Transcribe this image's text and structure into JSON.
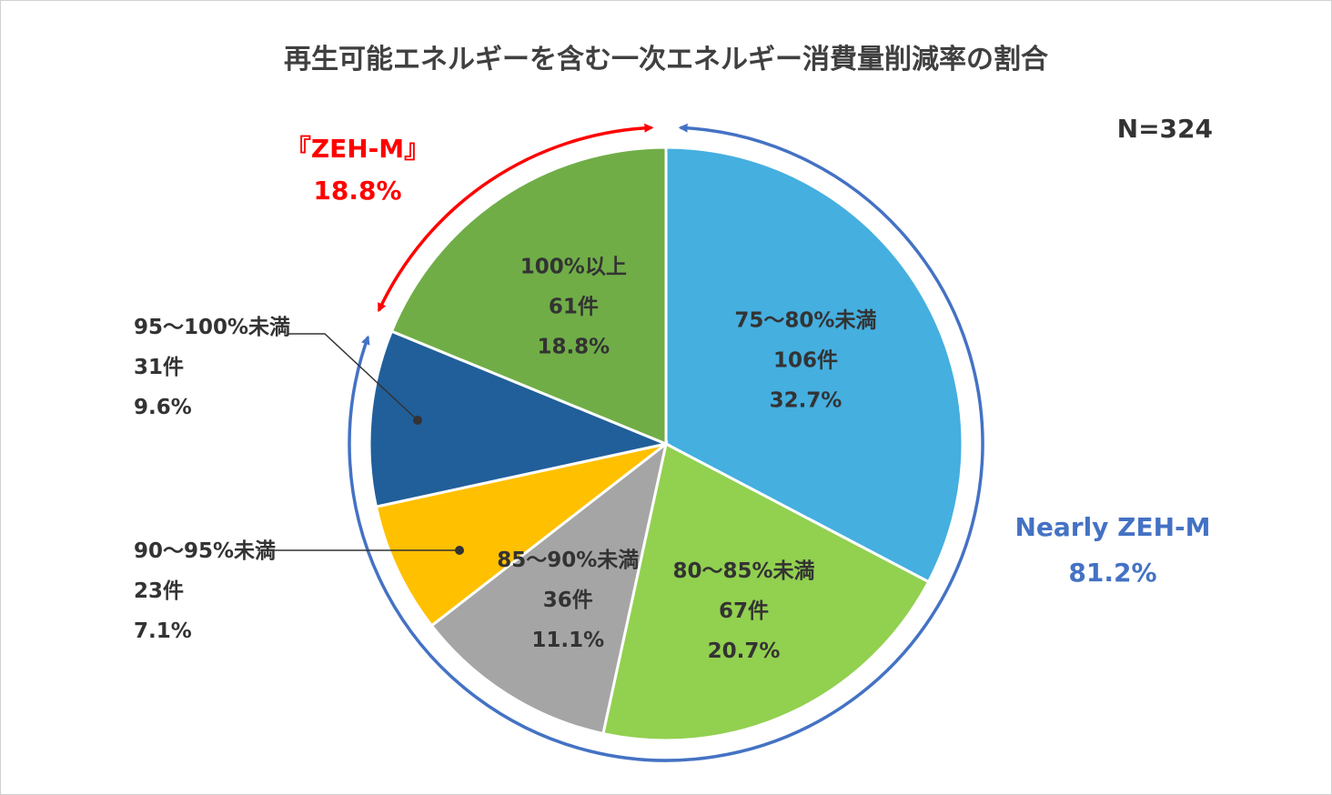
{
  "chart_data": {
    "type": "pie",
    "title": "再生可能エネルギーを含む一次エネルギー消費量削減率の割合",
    "sample_size": "N=324",
    "slices": [
      {
        "category": "75～80%未満",
        "count": "106件",
        "percent": "32.7%",
        "value": 32.7,
        "color": "#45AFE0"
      },
      {
        "category": "80～85%未満",
        "count": "67件",
        "percent": "20.7%",
        "value": 20.7,
        "color": "#92D050"
      },
      {
        "category": "85～90%未満",
        "count": "36件",
        "percent": "11.1%",
        "value": 11.1,
        "color": "#A5A5A5"
      },
      {
        "category": "90～95%未満",
        "count": "23件",
        "percent": "7.1%",
        "value": 7.1,
        "color": "#FFC000"
      },
      {
        "category": "95～100%未満",
        "count": "31件",
        "percent": "9.6%",
        "value": 9.6,
        "color": "#215F9A"
      },
      {
        "category": "100%以上",
        "count": "61件",
        "percent": "18.8%",
        "value": 18.8,
        "color": "#70AD47"
      }
    ],
    "annotations": [
      {
        "label": "『ZEH-M』",
        "value": "18.8%",
        "color": "#FF0000"
      },
      {
        "label": "Nearly ZEH-M",
        "value": "81.2%",
        "color": "#4472C4"
      }
    ]
  }
}
